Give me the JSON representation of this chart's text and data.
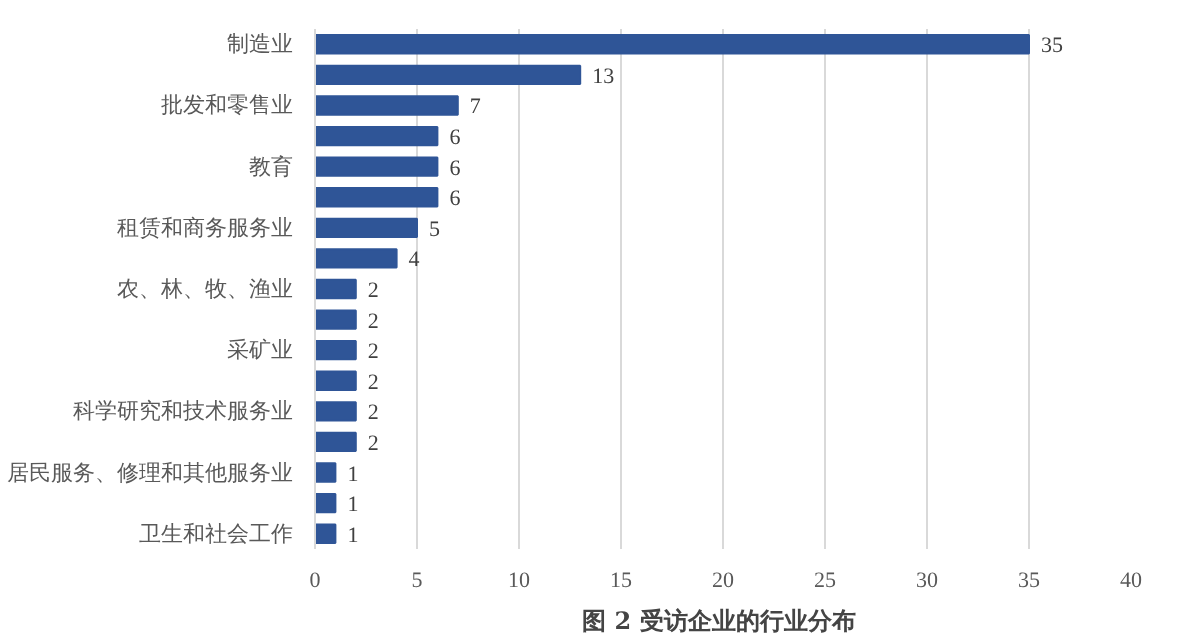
{
  "chart_data": {
    "type": "bar",
    "orientation": "horizontal",
    "title": "图 2  受访企业的行业分布",
    "categories": [
      "制造业",
      null,
      "批发和零售业",
      null,
      "教育",
      null,
      "租赁和商务服务业",
      null,
      "农、林、牧、渔业",
      null,
      "采矿业",
      null,
      "科学研究和技术服务业",
      null,
      "居民服务、修理和其他服务业",
      null,
      "卫生和社会工作"
    ],
    "values": [
      35,
      13,
      7,
      6,
      6,
      6,
      5,
      4,
      2,
      2,
      2,
      2,
      2,
      2,
      1,
      1,
      1
    ],
    "color": "#2f5597",
    "xlim": [
      0,
      40
    ],
    "xticks": [
      0,
      5,
      10,
      15,
      20,
      25,
      30,
      35,
      40
    ],
    "grid": "x",
    "data_labels": true
  }
}
